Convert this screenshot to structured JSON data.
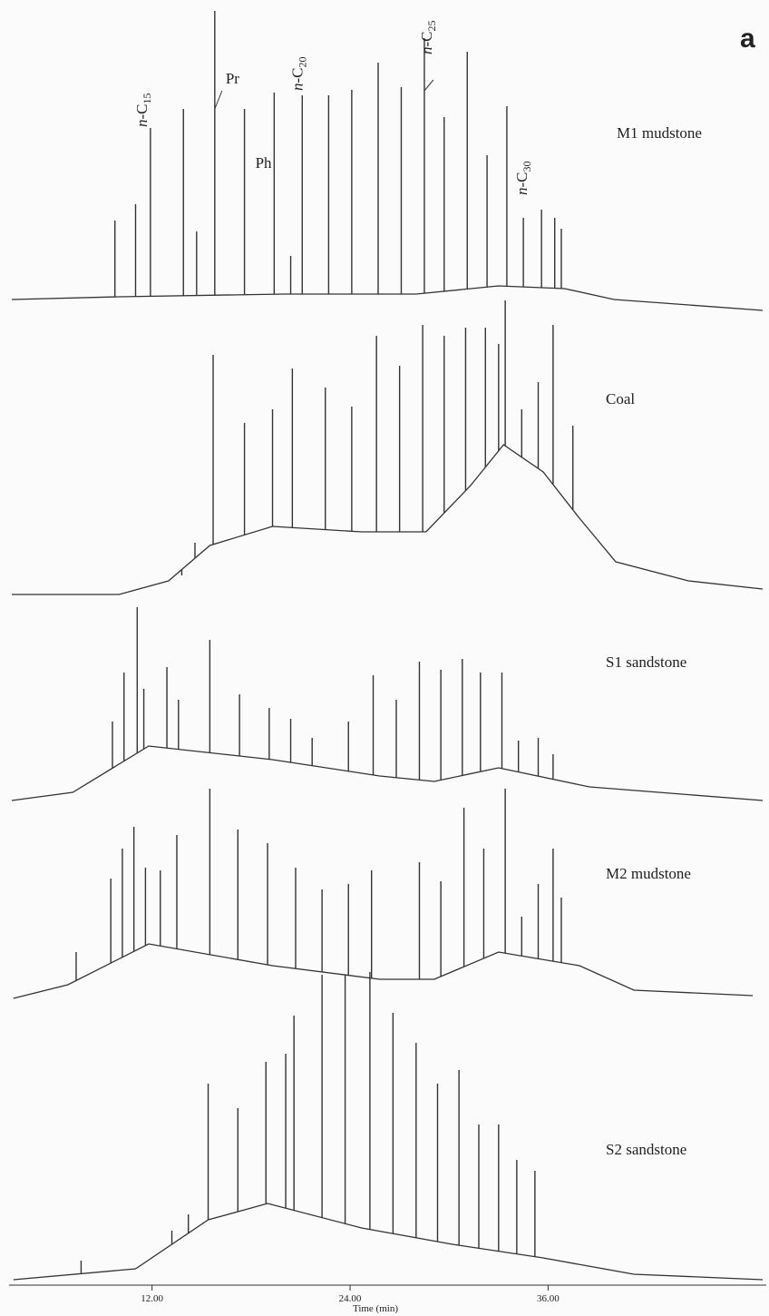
{
  "chart_data": {
    "type": "stem",
    "panel_label": "a",
    "xlabel": "Time (min)",
    "xlim": [
      3.5,
      49
    ],
    "ylim": [
      -10,
      120
    ],
    "xticks": [
      {
        "value": 12,
        "label": "12.00"
      },
      {
        "value": 24,
        "label": "24.00"
      },
      {
        "value": 36,
        "label": "36.00"
      }
    ],
    "annotations": [
      {
        "text": "n-C15",
        "x": 11.9
      },
      {
        "text": "Pr",
        "x": 15.8
      },
      {
        "text": "Ph",
        "x": 17.6
      },
      {
        "text": "n-C20",
        "x": 21.1
      },
      {
        "text": "n-C25",
        "x": 28.5
      },
      {
        "text": "n-C30",
        "x": 34.5
      }
    ],
    "series": [
      {
        "name": "M1 mudstone",
        "color": "#333333",
        "x": [
          9.75,
          11.0,
          11.9,
          13.9,
          14.7,
          15.8,
          17.6,
          19.4,
          20.4,
          21.1,
          22.7,
          24.1,
          25.7,
          27.1,
          28.5,
          29.7,
          31.1,
          32.3,
          33.5,
          34.5,
          35.6,
          36.4,
          36.8
        ],
        "values": [
          29,
          35,
          63,
          70,
          25,
          106,
          70,
          76,
          16,
          75,
          75,
          77,
          87,
          78,
          96,
          67,
          91,
          53,
          71,
          30,
          33,
          30,
          26
        ],
        "baseline": {
          "x": [
            3.5,
            10,
            20,
            28,
            33,
            37,
            40,
            49
          ],
          "values": [
            0,
            1,
            2,
            2,
            5,
            4,
            0,
            -4
          ]
        }
      },
      {
        "name": "Coal",
        "color": "#333333",
        "x": [
          13.8,
          14.6,
          15.7,
          17.6,
          19.3,
          20.5,
          22.5,
          24.1,
          25.6,
          27.0,
          28.4,
          29.7,
          31.0,
          32.2,
          33.0,
          33.4,
          34.4,
          35.4,
          36.3,
          37.5
        ],
        "values": [
          7,
          19,
          88,
          63,
          68,
          83,
          76,
          69,
          95,
          84,
          99,
          95,
          98,
          98,
          92,
          108,
          68,
          78,
          99,
          62
        ],
        "baseline": {
          "x": [
            3.5,
            10,
            13,
            15.5,
            19.3,
            24.7,
            28.6,
            31.3,
            33.3,
            35.7,
            37.9,
            40.1,
            44.5,
            49
          ],
          "values": [
            0,
            0,
            5,
            18,
            25,
            23,
            23,
            40,
            55,
            45,
            28,
            12,
            5,
            2
          ]
        }
      },
      {
        "name": "S1 sandstone",
        "color": "#333333",
        "x": [
          9.6,
          10.3,
          11.1,
          11.5,
          12.9,
          13.6,
          15.5,
          17.3,
          19.1,
          20.4,
          21.7,
          23.9,
          25.4,
          26.8,
          28.2,
          29.5,
          30.8,
          31.9,
          33.2,
          34.2,
          35.4,
          36.3
        ],
        "values": [
          29,
          47,
          71,
          41,
          49,
          37,
          59,
          39,
          34,
          30,
          23,
          29,
          46,
          37,
          51,
          48,
          52,
          47,
          47,
          22,
          23,
          17
        ],
        "baseline": {
          "x": [
            3.5,
            7.2,
            11.8,
            19.3,
            25.8,
            29.1,
            33.0,
            38.5,
            49
          ],
          "values": [
            0,
            3,
            20,
            15,
            9,
            7,
            12,
            5,
            0
          ]
        }
      },
      {
        "name": "M2 mudstone",
        "color": "#333333",
        "x": [
          7.4,
          9.5,
          10.2,
          10.9,
          11.6,
          12.5,
          13.5,
          14.4,
          15.5,
          17.2,
          19.0,
          20.7,
          22.3,
          23.9,
          25.3,
          28.2,
          29.5,
          30.9,
          32.1,
          33.4,
          34.4,
          35.4,
          36.3,
          36.8
        ],
        "values": [
          17,
          44,
          55,
          63,
          48,
          47,
          60,
          17,
          77,
          62,
          57,
          48,
          40,
          42,
          47,
          50,
          43,
          70,
          55,
          77,
          30,
          42,
          55,
          37
        ],
        "baseline": {
          "x": [
            3.6,
            6.9,
            11.8,
            19.3,
            25.8,
            29.1,
            33.0,
            37.9,
            41.2,
            48.4
          ],
          "values": [
            0,
            5,
            20,
            12,
            7,
            7,
            17,
            12,
            3,
            1
          ]
        }
      },
      {
        "name": "S2 sandstone",
        "color": "#333333",
        "x": [
          7.7,
          13.2,
          14.2,
          15.4,
          17.2,
          18.9,
          20.1,
          20.6,
          22.3,
          23.7,
          25.2,
          26.6,
          28.0,
          29.3,
          30.6,
          31.8,
          33.0,
          34.1,
          35.2
        ],
        "values": [
          7,
          18,
          24,
          72,
          63,
          80,
          83,
          97,
          112,
          112,
          113,
          98,
          87,
          72,
          77,
          57,
          57,
          44,
          40
        ],
        "baseline": {
          "x": [
            3.6,
            11.0,
            15.4,
            19.0,
            24.7,
            30.2,
            35.7,
            41.2,
            49
          ],
          "values": [
            0,
            4,
            22,
            28,
            19,
            13,
            8,
            2,
            0
          ]
        }
      }
    ]
  }
}
